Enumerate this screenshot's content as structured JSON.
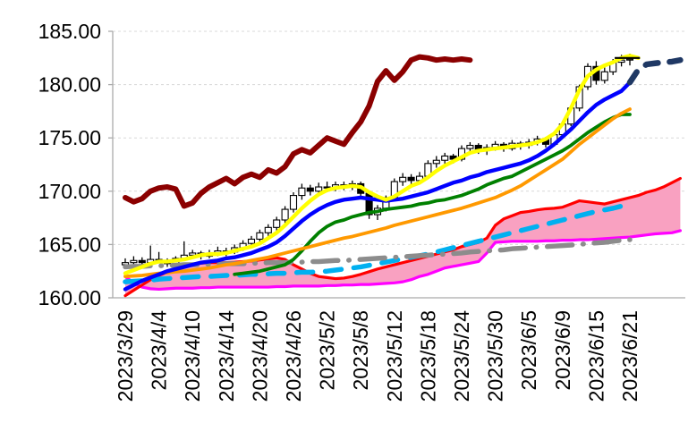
{
  "window": {
    "background": "#FFFFFF"
  },
  "chart_data": {
    "type": "candlestick",
    "title": "",
    "xlabel": "",
    "ylabel": "",
    "legend": "none",
    "grid": "horizontal-dotted",
    "ylim": [
      160,
      185
    ],
    "ytick_step": 5,
    "ytick_labels": [
      "160.00",
      "165.00",
      "170.00",
      "175.00",
      "180.00",
      "185.00"
    ],
    "xtick_every": 4,
    "xtick_labels": [
      "2023/3/29",
      "2023/4/4",
      "2023/4/10",
      "2023/4/14",
      "2023/4/20",
      "2023/4/26",
      "2023/5/2",
      "2023/5/8",
      "2023/5/12",
      "2023/5/18",
      "2023/5/24",
      "2023/5/30",
      "2023/6/5",
      "2023/6/9",
      "2023/6/15",
      "2023/6/21"
    ],
    "n_slots": 67,
    "axis": {
      "line_color": "#ABABAB",
      "grid_color": "#D8D8D8",
      "label_color": "#000000",
      "tick_color": "#ABABAB"
    },
    "candle_style": {
      "up_fill": "#FFFFFF",
      "down_fill": "#000000",
      "stroke": "#000000",
      "body_width": 7
    },
    "candles": [
      [
        163.1,
        163.7,
        162.8,
        163.3
      ],
      [
        163.3,
        163.9,
        163.1,
        163.5
      ],
      [
        163.5,
        163.8,
        163.0,
        163.3
      ],
      [
        163.3,
        164.9,
        163.2,
        163.6
      ],
      [
        163.6,
        164.3,
        163.3,
        163.5
      ],
      [
        163.5,
        163.7,
        162.9,
        163.2
      ],
      [
        163.2,
        163.9,
        162.4,
        163.7
      ],
      [
        163.7,
        165.3,
        163.5,
        164.0
      ],
      [
        164.0,
        164.5,
        163.7,
        164.2
      ],
      [
        164.2,
        164.4,
        163.6,
        163.9
      ],
      [
        163.9,
        164.5,
        163.7,
        164.1
      ],
      [
        164.1,
        164.8,
        163.9,
        164.4
      ],
      [
        164.4,
        164.7,
        163.9,
        164.3
      ],
      [
        164.3,
        165.0,
        164.1,
        164.7
      ],
      [
        164.7,
        165.4,
        164.4,
        165.1
      ],
      [
        165.1,
        165.8,
        164.8,
        165.5
      ],
      [
        165.5,
        166.4,
        165.2,
        166.1
      ],
      [
        166.1,
        166.9,
        165.8,
        166.6
      ],
      [
        166.6,
        167.6,
        166.3,
        167.3
      ],
      [
        167.3,
        168.6,
        167.0,
        168.3
      ],
      [
        168.3,
        169.9,
        168.0,
        169.6
      ],
      [
        169.6,
        170.7,
        169.2,
        170.3
      ],
      [
        170.3,
        170.6,
        169.6,
        170.0
      ],
      [
        170.0,
        170.8,
        169.7,
        170.4
      ],
      [
        170.4,
        170.9,
        169.9,
        170.3
      ],
      [
        170.3,
        170.9,
        170.0,
        170.6
      ],
      [
        170.6,
        170.9,
        170.1,
        170.4
      ],
      [
        170.4,
        171.0,
        170.1,
        170.7
      ],
      [
        170.7,
        170.9,
        169.5,
        169.8
      ],
      [
        169.8,
        170.0,
        167.4,
        167.8
      ],
      [
        167.8,
        168.7,
        167.3,
        168.4
      ],
      [
        168.4,
        169.6,
        168.1,
        169.4
      ],
      [
        169.4,
        171.2,
        169.2,
        170.9
      ],
      [
        170.9,
        171.7,
        170.5,
        171.3
      ],
      [
        171.3,
        171.6,
        170.6,
        171.0
      ],
      [
        171.0,
        171.8,
        170.7,
        171.4
      ],
      [
        171.4,
        172.9,
        171.2,
        172.6
      ],
      [
        172.6,
        173.3,
        172.2,
        172.9
      ],
      [
        172.9,
        173.6,
        172.5,
        173.3
      ],
      [
        173.3,
        173.5,
        172.6,
        173.0
      ],
      [
        173.0,
        174.3,
        172.8,
        174.0
      ],
      [
        174.0,
        174.6,
        173.6,
        174.3
      ],
      [
        174.3,
        174.5,
        173.5,
        173.8
      ],
      [
        173.8,
        174.4,
        173.4,
        174.1
      ],
      [
        174.1,
        174.7,
        173.8,
        174.4
      ],
      [
        174.4,
        174.6,
        173.7,
        174.0
      ],
      [
        174.0,
        174.8,
        173.8,
        174.5
      ],
      [
        174.5,
        174.7,
        173.9,
        174.3
      ],
      [
        174.3,
        174.9,
        174.0,
        174.6
      ],
      [
        174.6,
        175.2,
        174.3,
        174.9
      ],
      [
        174.9,
        175.1,
        174.1,
        174.4
      ],
      [
        174.4,
        175.6,
        174.2,
        175.3
      ],
      [
        175.3,
        176.6,
        175.0,
        176.3
      ],
      [
        176.3,
        178.1,
        176.1,
        177.8
      ],
      [
        177.8,
        180.0,
        177.5,
        179.8
      ],
      [
        179.8,
        182.0,
        179.5,
        181.7
      ],
      [
        181.7,
        182.2,
        180.0,
        180.4
      ],
      [
        180.4,
        181.6,
        180.1,
        181.2
      ],
      [
        181.2,
        182.4,
        180.9,
        182.1
      ],
      [
        182.1,
        182.8,
        181.7,
        182.3
      ],
      [
        182.3,
        182.9,
        181.8,
        182.4
      ]
    ],
    "cloud": {
      "upper": "senkou-span-red",
      "lower": "senkou-span-magenta",
      "fill": "#F9A1C1"
    },
    "last_price_marker": {
      "value": 182.5,
      "from_index": 58.2,
      "to_index": 61.2,
      "color": "#000000",
      "width": 2.2
    },
    "series": [
      {
        "name": "senkou-span-magenta",
        "color": "#FF00FF",
        "width": 3.2,
        "dash": null,
        "start": 0,
        "layer": "under",
        "values": [
          162.0,
          161.4,
          161.0,
          160.85,
          160.8,
          160.85,
          160.9,
          160.9,
          160.9,
          160.95,
          160.95,
          161.0,
          161.0,
          161.0,
          161.0,
          161.0,
          161.0,
          161.0,
          161.05,
          161.05,
          161.1,
          161.1,
          161.1,
          161.1,
          161.15,
          161.15,
          161.2,
          161.2,
          161.25,
          161.25,
          161.3,
          161.35,
          161.4,
          161.5,
          161.7,
          162.0,
          162.2,
          162.5,
          162.8,
          162.95,
          163.1,
          163.25,
          163.4,
          164.2,
          165.2,
          165.25,
          165.3,
          165.3,
          165.3,
          165.3,
          165.35,
          165.35,
          165.4,
          165.4,
          165.45,
          165.45,
          165.5,
          165.55,
          165.6,
          165.65,
          165.7,
          165.8,
          165.9,
          166.0,
          166.05,
          166.1,
          166.3
        ]
      },
      {
        "name": "senkou-span-red",
        "color": "#FF0000",
        "width": 3.2,
        "dash": null,
        "start": 0,
        "layer": "under",
        "values": [
          160.2,
          160.7,
          161.2,
          161.7,
          162.1,
          162.4,
          162.7,
          162.9,
          163.1,
          163.25,
          163.3,
          163.3,
          163.3,
          163.35,
          163.4,
          163.45,
          163.55,
          163.65,
          163.75,
          163.6,
          163.1,
          162.7,
          162.3,
          162.0,
          161.9,
          161.8,
          161.85,
          162.0,
          162.2,
          162.45,
          162.7,
          162.9,
          163.1,
          163.3,
          163.5,
          163.7,
          163.9,
          164.1,
          164.3,
          164.5,
          164.8,
          165.0,
          165.2,
          165.6,
          166.8,
          167.4,
          167.7,
          168.0,
          168.1,
          168.25,
          168.35,
          168.4,
          168.5,
          168.8,
          169.1,
          169.0,
          168.9,
          168.8,
          169.0,
          169.2,
          169.4,
          169.6,
          169.9,
          170.1,
          170.4,
          170.8,
          171.2
        ]
      },
      {
        "name": "trend-cyan-dashed",
        "color": "#00B0F0",
        "width": 5.5,
        "dash": "18,14",
        "start": 0,
        "layer": "under",
        "values": [
          161.5,
          161.55,
          161.6,
          161.65,
          161.75,
          161.8,
          161.85,
          161.9,
          161.95,
          162.0,
          162.0,
          162.05,
          162.1,
          162.1,
          162.15,
          162.2,
          162.2,
          162.25,
          162.3,
          162.3,
          162.35,
          162.4,
          162.4,
          162.45,
          162.5,
          162.6,
          162.7,
          162.8,
          162.9,
          163.05,
          163.2,
          163.35,
          163.5,
          163.65,
          163.8,
          163.95,
          164.1,
          164.3,
          164.5,
          164.7,
          164.9,
          165.1,
          165.3,
          165.5,
          165.7,
          165.9,
          166.1,
          166.3,
          166.5,
          166.7,
          166.9,
          167.1,
          167.3,
          167.5,
          167.7,
          167.9,
          168.1,
          168.25,
          168.4,
          168.6
        ]
      },
      {
        "name": "baseline-gray-dashdot",
        "color": "#8C8C8C",
        "width": 5.5,
        "dash": "28,12,0.5,12",
        "start": 0,
        "layer": "over",
        "values": [
          162.9,
          162.95,
          162.95,
          163.0,
          163.0,
          163.05,
          163.05,
          163.1,
          163.1,
          163.1,
          163.15,
          163.15,
          163.2,
          163.2,
          163.2,
          163.25,
          163.25,
          163.3,
          163.3,
          163.3,
          163.35,
          163.35,
          163.4,
          163.4,
          163.45,
          163.5,
          163.5,
          163.55,
          163.6,
          163.65,
          163.7,
          163.75,
          163.8,
          163.85,
          163.9,
          163.95,
          164.0,
          164.05,
          164.1,
          164.15,
          164.2,
          164.3,
          164.35,
          164.4,
          164.45,
          164.5,
          164.6,
          164.65,
          164.7,
          164.75,
          164.8,
          164.85,
          164.9,
          164.95,
          165.0,
          165.1,
          165.15,
          165.2,
          165.3,
          165.4,
          165.45
        ]
      },
      {
        "name": "ma-green",
        "color": "#008000",
        "width": 3.8,
        "dash": null,
        "start": 13,
        "layer": "over",
        "values": [
          162.2,
          162.3,
          162.4,
          162.5,
          162.7,
          162.9,
          163.1,
          163.6,
          164.4,
          165.3,
          166.1,
          166.7,
          167.1,
          167.3,
          167.6,
          167.8,
          168.0,
          168.1,
          168.3,
          168.4,
          168.5,
          168.6,
          168.8,
          168.9,
          169.1,
          169.2,
          169.4,
          169.6,
          169.9,
          170.2,
          170.6,
          170.9,
          171.2,
          171.4,
          171.8,
          172.2,
          172.6,
          173.0,
          173.4,
          173.8,
          174.3,
          174.9,
          175.5,
          176.0,
          176.5,
          176.9,
          177.2,
          177.2
        ]
      },
      {
        "name": "ma-orange",
        "color": "#FF9900",
        "width": 3.8,
        "dash": null,
        "start": 0,
        "layer": "over",
        "values": [
          162.0,
          162.05,
          162.1,
          162.2,
          162.3,
          162.35,
          162.45,
          162.5,
          162.6,
          162.7,
          162.8,
          162.95,
          163.1,
          163.2,
          163.35,
          163.5,
          163.65,
          163.8,
          164.0,
          164.2,
          164.4,
          164.6,
          164.8,
          165.0,
          165.2,
          165.4,
          165.6,
          165.75,
          165.95,
          166.15,
          166.35,
          166.55,
          166.8,
          167.0,
          167.2,
          167.4,
          167.6,
          167.8,
          168.0,
          168.2,
          168.4,
          168.65,
          168.9,
          169.15,
          169.4,
          169.75,
          170.1,
          170.5,
          171.0,
          171.5,
          172.0,
          172.5,
          173.0,
          173.7,
          174.4,
          175.0,
          175.6,
          176.2,
          176.8,
          177.3,
          177.7
        ]
      },
      {
        "name": "ma-blue",
        "color": "#0000FF",
        "width": 4.4,
        "dash": null,
        "start": 0,
        "layer": "over",
        "values": [
          160.8,
          161.2,
          161.6,
          161.9,
          162.2,
          162.5,
          162.7,
          162.9,
          163.1,
          163.3,
          163.4,
          163.5,
          163.7,
          163.8,
          164.0,
          164.2,
          164.5,
          164.8,
          165.2,
          165.8,
          166.5,
          167.2,
          167.8,
          168.3,
          168.7,
          169.0,
          169.2,
          169.3,
          169.4,
          169.3,
          169.2,
          169.1,
          169.2,
          169.3,
          169.5,
          169.7,
          169.9,
          170.2,
          170.5,
          170.8,
          171.0,
          171.3,
          171.5,
          171.8,
          172.0,
          172.2,
          172.4,
          172.6,
          172.9,
          173.3,
          173.8,
          174.4,
          175.1,
          175.8,
          176.6,
          177.4,
          178.1,
          178.6,
          179.0,
          179.4,
          180.2
        ]
      },
      {
        "name": "ma-yellow",
        "color": "#FFFF00",
        "width": 4.4,
        "dash": null,
        "start": 0,
        "layer": "over",
        "values": [
          162.3,
          162.6,
          162.9,
          163.2,
          163.4,
          163.4,
          163.5,
          163.6,
          163.8,
          164.0,
          164.1,
          164.1,
          164.2,
          164.4,
          164.6,
          164.8,
          165.1,
          165.6,
          166.1,
          166.8,
          167.6,
          168.4,
          169.1,
          169.7,
          170.1,
          170.3,
          170.4,
          170.5,
          170.4,
          169.9,
          169.5,
          169.2,
          169.5,
          170.0,
          170.5,
          170.8,
          171.3,
          171.9,
          172.4,
          172.8,
          173.2,
          173.6,
          173.8,
          173.9,
          174.0,
          174.1,
          174.2,
          174.3,
          174.4,
          174.6,
          174.9,
          175.4,
          176.3,
          177.8,
          179.5,
          180.8,
          181.4,
          181.8,
          182.1,
          182.5,
          182.7,
          182.5
        ]
      },
      {
        "name": "comparison-darkred",
        "color": "#8B0000",
        "width": 6.0,
        "dash": null,
        "start": 0,
        "layer": "over",
        "values": [
          169.4,
          169.0,
          169.3,
          170.0,
          170.3,
          170.4,
          170.2,
          168.6,
          168.9,
          169.8,
          170.4,
          170.8,
          171.2,
          170.7,
          171.3,
          171.6,
          171.3,
          172.0,
          171.7,
          172.3,
          173.5,
          173.9,
          173.6,
          174.3,
          175.0,
          174.7,
          174.4,
          175.5,
          176.5,
          178.0,
          180.3,
          181.3,
          180.4,
          181.2,
          182.3,
          182.6,
          182.5,
          182.3,
          182.4,
          182.3,
          182.4,
          182.3
        ]
      },
      {
        "name": "forecast-navy-dashed",
        "color": "#1F3864",
        "width": 6.5,
        "dash": "14,13",
        "start": 60,
        "layer": "over",
        "values": [
          180.2,
          181.4,
          181.9,
          182.0,
          182.1,
          182.15,
          182.3
        ]
      }
    ]
  }
}
